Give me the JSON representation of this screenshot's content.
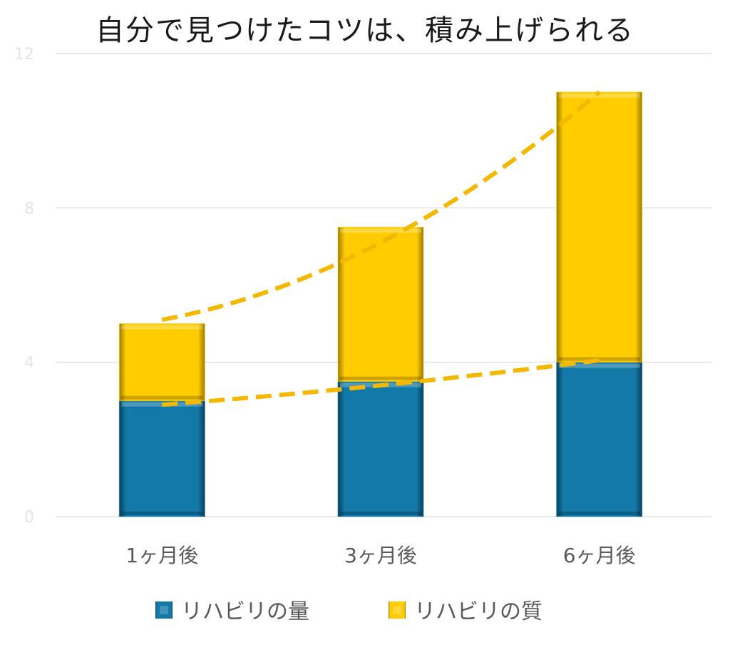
{
  "chart_data": {
    "type": "bar",
    "stacked": true,
    "title": "自分で見つけたコツは、積み上げられる",
    "categories": [
      "1ヶ月後",
      "3ヶ月後",
      "6ヶ月後"
    ],
    "series": [
      {
        "name": "リハビリの量",
        "values": [
          3.0,
          3.5,
          4.0
        ],
        "color": "#1279a8"
      },
      {
        "name": "リハビリの質",
        "values": [
          2.0,
          4.0,
          7.0
        ],
        "color": "#ffcc00"
      }
    ],
    "yticks": [
      0,
      4,
      8,
      12
    ],
    "ylim": [
      0,
      12
    ],
    "grid": true,
    "legend_position": "bottom",
    "trendline_color": "#f5b800",
    "trendlines": [
      {
        "series": "リハビリの量",
        "style": "dashed",
        "values": [
          2.9,
          3.4,
          4.05
        ]
      },
      {
        "series": "リハビリの質",
        "style": "dashed",
        "values": [
          5.1,
          7.1,
          11.0
        ]
      }
    ]
  }
}
